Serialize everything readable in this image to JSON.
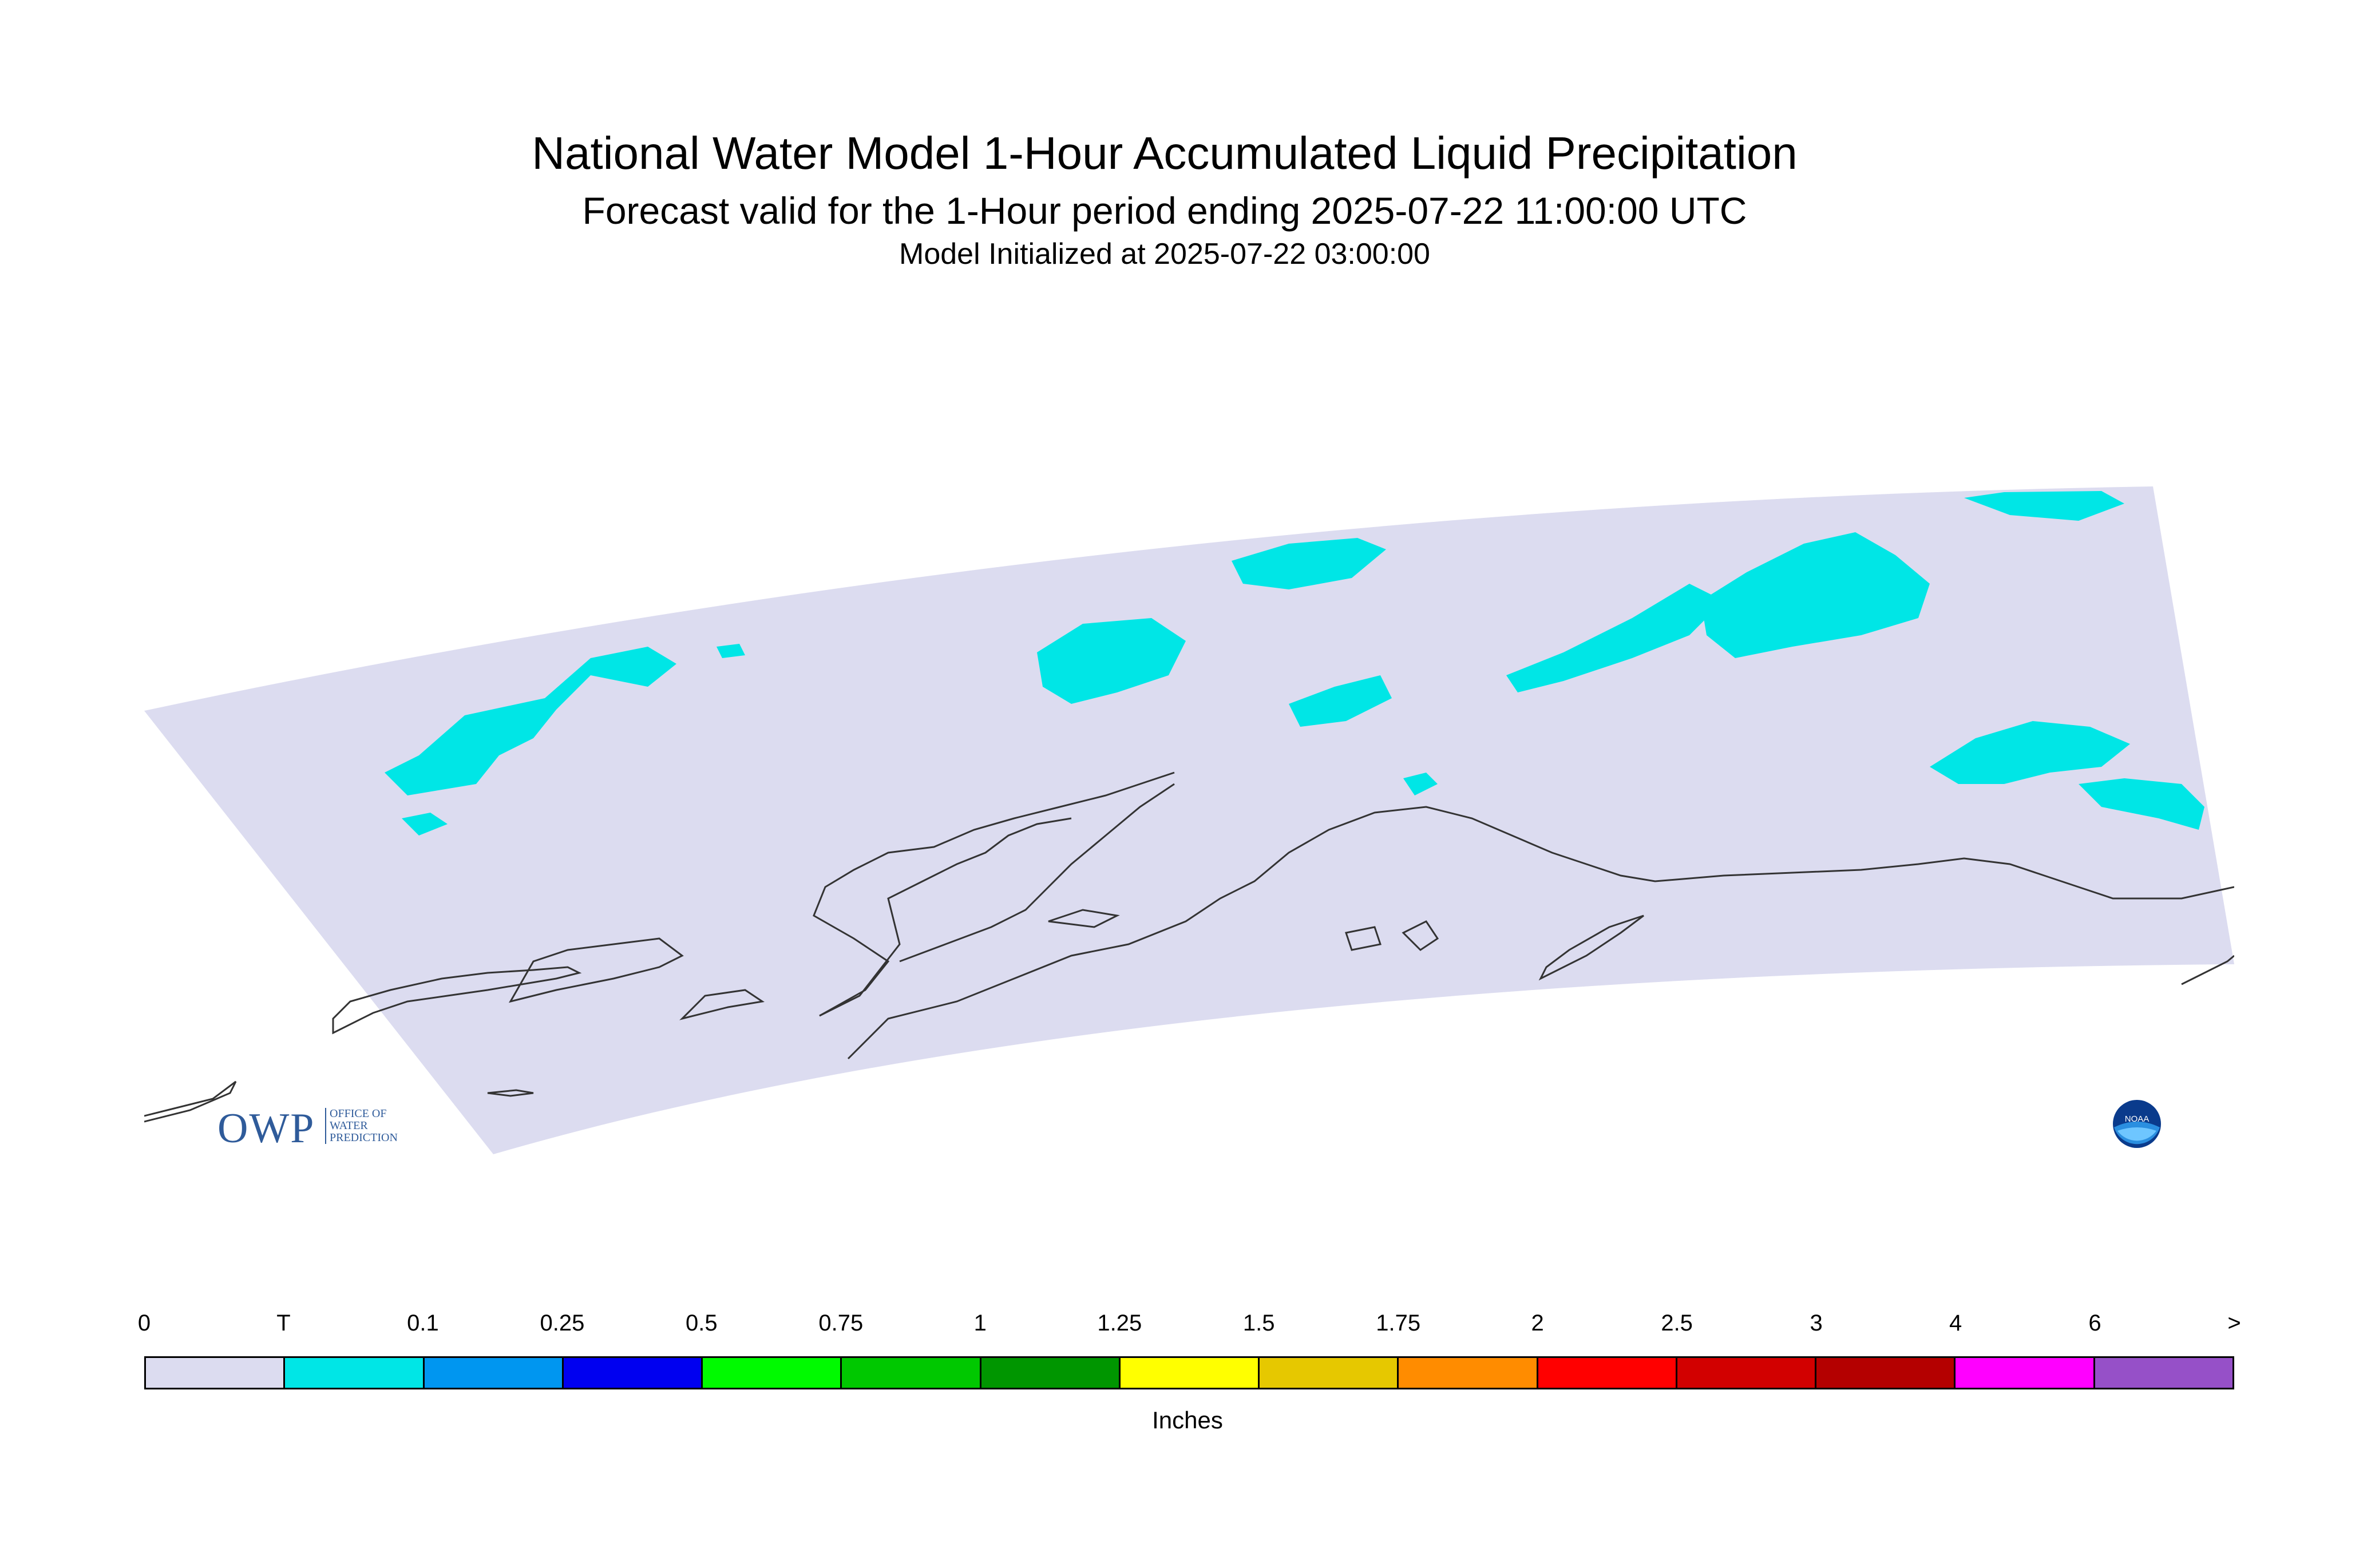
{
  "header": {
    "title": "National Water Model 1-Hour Accumulated Liquid Precipitation",
    "subtitle": "Forecast valid for the 1-Hour period ending 2025-07-22 11:00:00 UTC",
    "init": "Model Initialized at 2025-07-22 03:00:00"
  },
  "logos": {
    "owp_main": "OWP",
    "owp_line1": "OFFICE OF",
    "owp_line2": "WATER",
    "owp_line3": "PREDICTION",
    "noaa": "NOAA"
  },
  "legend": {
    "labels": [
      "0",
      "T",
      "0.1",
      "0.25",
      "0.5",
      "0.75",
      "1",
      "1.25",
      "1.5",
      "1.75",
      "2",
      "2.5",
      "3",
      "4",
      "6",
      ">"
    ],
    "colors": [
      "#dcdcf0",
      "#00e6e6",
      "#0096f0",
      "#0000f0",
      "#00fa00",
      "#00c800",
      "#009600",
      "#ffff00",
      "#e6c800",
      "#ff8c00",
      "#ff0000",
      "#d20000",
      "#b40000",
      "#ff00ff",
      "#9650c8"
    ],
    "units": "Inches"
  },
  "map": {
    "domain_color": "#dcdcf0",
    "precip_color": "#00e6e6",
    "coast_color": "#333333"
  }
}
